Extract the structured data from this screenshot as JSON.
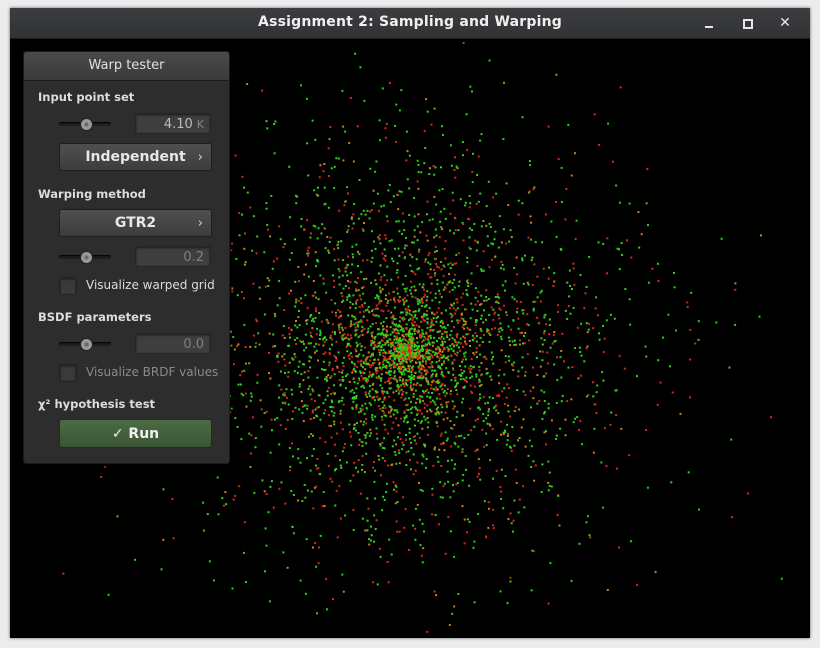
{
  "window": {
    "title": "Assignment 2: Sampling and Warping",
    "minimize_glyph": "",
    "maximize_glyph": "",
    "close_glyph": "✕"
  },
  "panel": {
    "title": "Warp tester",
    "input_point_set": {
      "label": "Input point set",
      "slider_fraction": 0.5,
      "value": "4.10",
      "unit": "K",
      "point_type": "Independent"
    },
    "warping_method": {
      "label": "Warping method",
      "method": "GTR2",
      "slider_fraction": 0.52,
      "value": "0.2",
      "visualize_grid_label": "Visualize warped grid"
    },
    "bsdf_parameters": {
      "label": "BSDF parameters",
      "slider_fraction": 0.52,
      "value": "0.0",
      "visualize_brdf_label": "Visualize BRDF values"
    },
    "hypothesis_test": {
      "label": "χ² hypothesis test",
      "run_label": "✓ Run"
    }
  },
  "colors": {
    "background": "#000000",
    "point_red": "#d42a1a",
    "point_green": "#2fd21a",
    "point_orange": "#d4801a",
    "run_button": "#44613d"
  },
  "icons": {
    "chevron": "›"
  }
}
